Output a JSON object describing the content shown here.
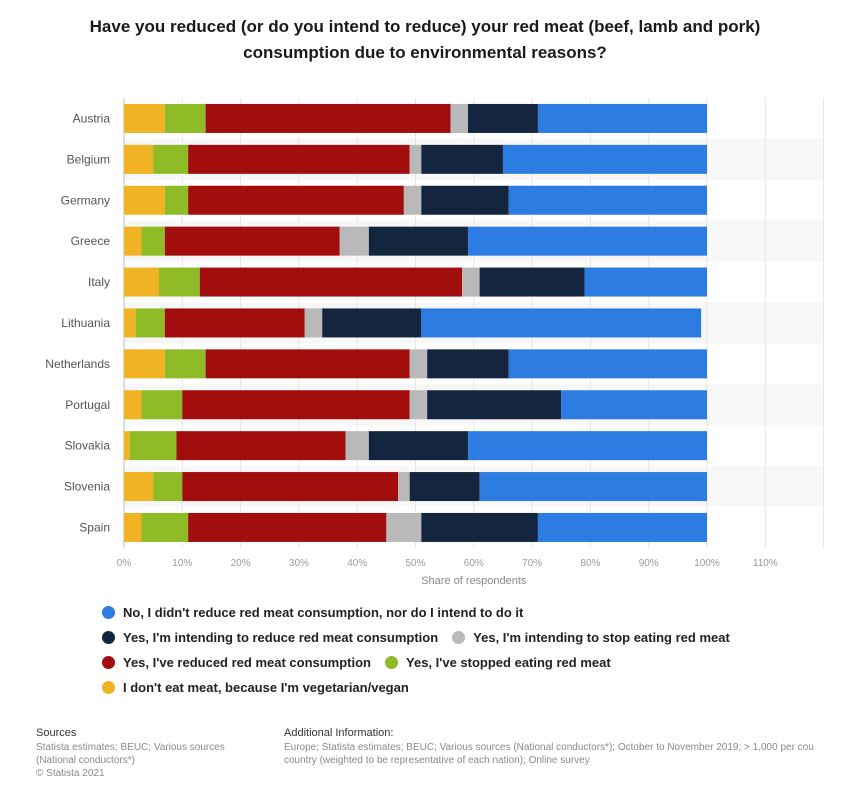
{
  "chart_data": {
    "type": "bar",
    "orientation": "horizontal",
    "stacked": true,
    "title": "Have you reduced (or do you intend to reduce) your red meat (beef, lamb and pork) consumption due to environmental reasons?",
    "xlabel": "Share of respondents",
    "ylabel": "",
    "xlim": [
      0,
      120
    ],
    "xticks": [
      "0%",
      "10%",
      "20%",
      "30%",
      "40%",
      "50%",
      "60%",
      "70%",
      "80%",
      "90%",
      "100%",
      "110%"
    ],
    "grid": true,
    "legend_position": "bottom",
    "categories": [
      "Austria",
      "Belgium",
      "Germany",
      "Greece",
      "Italy",
      "Lithuania",
      "Netherlands",
      "Portugal",
      "Slovakia",
      "Slovenia",
      "Spain"
    ],
    "series": [
      {
        "name": "I don't eat meat, because I'm vegetarian/vegan",
        "color": "#f0b323",
        "values": [
          7,
          5,
          7,
          3,
          6,
          2,
          7,
          3,
          1,
          5,
          3
        ]
      },
      {
        "name": "Yes, I've stopped eating red meat",
        "color": "#8fbc26",
        "values": [
          7,
          6,
          4,
          4,
          7,
          5,
          7,
          7,
          8,
          5,
          8
        ]
      },
      {
        "name": "Yes, I've reduced red meat consumption",
        "color": "#a20e0e",
        "values": [
          42,
          38,
          37,
          30,
          45,
          24,
          35,
          39,
          29,
          37,
          34
        ]
      },
      {
        "name": "Yes, I'm intending to stop eating red meat",
        "color": "#b9b9b9",
        "values": [
          3,
          2,
          3,
          5,
          3,
          3,
          3,
          3,
          4,
          2,
          6
        ]
      },
      {
        "name": "Yes, I'm intending to reduce red meat consumption",
        "color": "#14253f",
        "values": [
          12,
          14,
          15,
          17,
          18,
          17,
          14,
          23,
          17,
          12,
          20
        ]
      },
      {
        "name": "No, I didn't reduce red meat consumption, nor do I intend to do it",
        "color": "#2c7ce2",
        "values": [
          29,
          35,
          34,
          41,
          21,
          48,
          34,
          25,
          41,
          39,
          29
        ]
      }
    ]
  },
  "legend_rows": [
    [
      "No, I didn't reduce red meat consumption, nor do I intend to do it"
    ],
    [
      "Yes, I'm intending to reduce red meat consumption",
      "Yes, I'm intending to stop eating red meat"
    ],
    [
      "Yes, I've reduced red meat consumption",
      "Yes, I've stopped eating red meat"
    ],
    [
      "I don't eat meat, because I'm vegetarian/vegan"
    ]
  ],
  "footer": {
    "sources_heading": "Sources",
    "sources_lines": [
      "Statista estimates; BEUC; Various sources",
      "(National conductors*)",
      "© Statista 2021"
    ],
    "additional_heading": "Additional Information:",
    "additional_lines": [
      "Europe; Statista estimates; BEUC; Various sources (National conductors*); October to November 2019; > 1,000 per cou",
      "country (weighted to be representative of each nation); Online survey"
    ]
  }
}
